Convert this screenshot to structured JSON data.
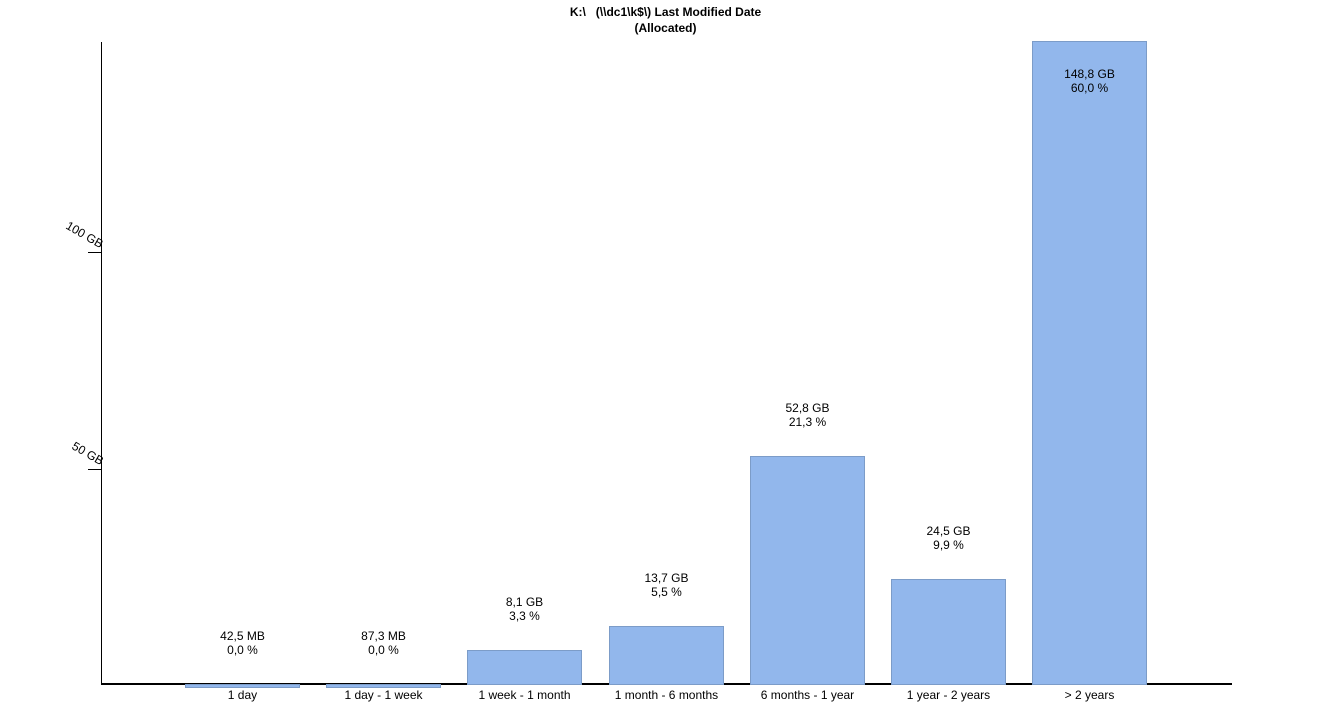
{
  "chart_data": {
    "type": "bar",
    "title": "K:\\   (\\\\dc1\\k$\\) Last Modified Date",
    "subtitle": "(Allocated)",
    "categories": [
      "1 day",
      "1 day - 1 week",
      "1 week - 1 month",
      "1 month - 6 months",
      "6 months - 1 year",
      "1 year - 2 years",
      "> 2 years"
    ],
    "values_gb": [
      0.0415,
      0.0852,
      8.1,
      13.7,
      52.8,
      24.5,
      148.8
    ],
    "bar_labels": [
      {
        "size": "42,5 MB",
        "percent": "0,0 %"
      },
      {
        "size": "87,3 MB",
        "percent": "0,0 %"
      },
      {
        "size": "8,1 GB",
        "percent": "3,3 %"
      },
      {
        "size": "13,7 GB",
        "percent": "5,5 %"
      },
      {
        "size": "52,8 GB",
        "percent": "21,3 %"
      },
      {
        "size": "24,5 GB",
        "percent": "9,9 %"
      },
      {
        "size": "148,8 GB",
        "percent": "60,0 %"
      }
    ],
    "yticks": [
      {
        "label": "50 GB",
        "gb": 50
      },
      {
        "label": "100 GB",
        "gb": 100
      }
    ],
    "ylim_gb": [
      0,
      150
    ],
    "xlabel": "",
    "ylabel": "",
    "grid": false,
    "legend": false,
    "colors": {
      "bar_fill": "#92B7EC",
      "bar_border": "#7C9CC8",
      "axis": "#000000",
      "text": "#000000",
      "background": "#FFFFFF"
    }
  }
}
